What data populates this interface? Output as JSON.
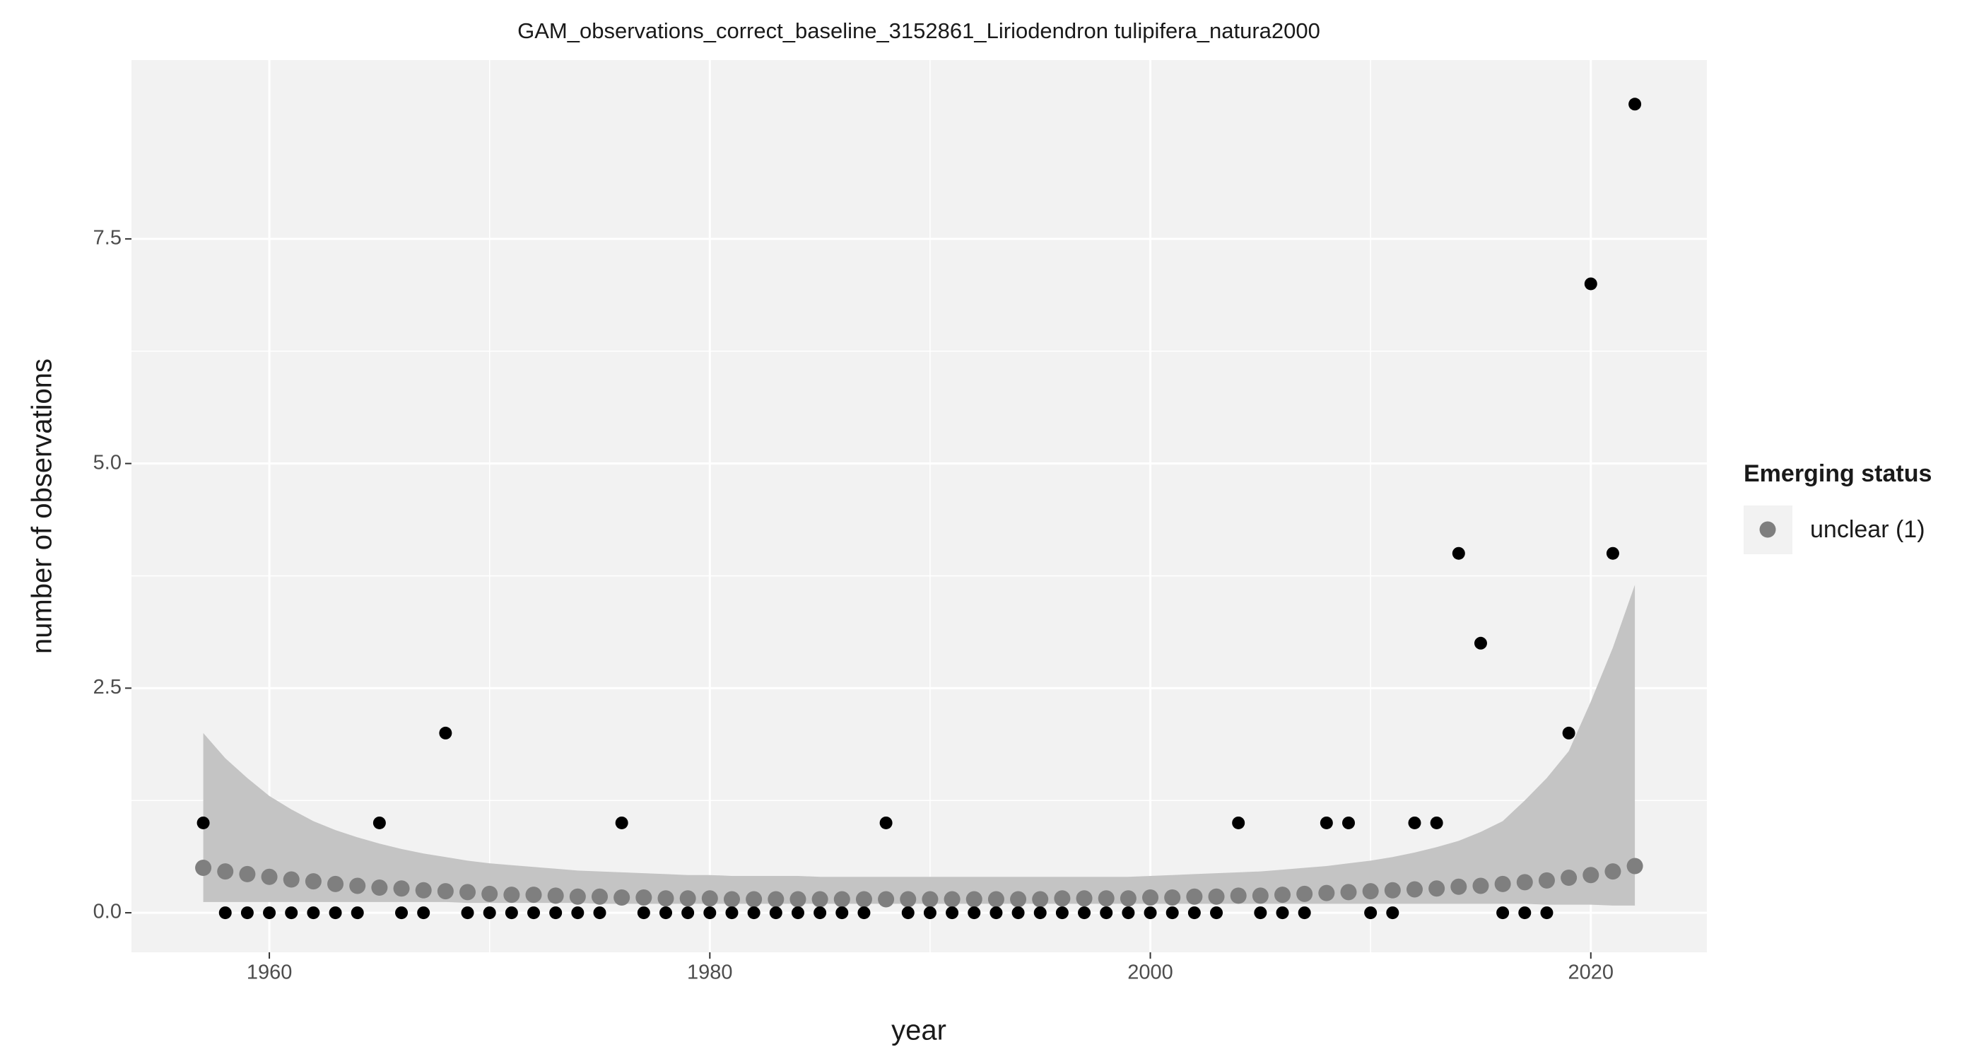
{
  "chart_data": {
    "type": "scatter",
    "title": "GAM_observations_correct_baseline_3152861_Liriodendron tulipifera_natura2000",
    "x_label": "year",
    "y_label": "number of observations",
    "legend_title": "Emerging status",
    "xlim": [
      1953.74,
      2025.27
    ],
    "ylim": [
      -0.44,
      9.49
    ],
    "xticks": [
      1960,
      1980,
      2000,
      2020
    ],
    "yticks": [
      {
        "value": 0,
        "label": "0.0"
      },
      {
        "value": 2.5,
        "label": "2.5"
      },
      {
        "value": 5,
        "label": "5.0"
      },
      {
        "value": 7.5,
        "label": "7.5"
      }
    ],
    "grid": true,
    "x": [
      1957,
      1958,
      1959,
      1960,
      1961,
      1962,
      1963,
      1964,
      1965,
      1966,
      1967,
      1968,
      1969,
      1970,
      1971,
      1972,
      1973,
      1974,
      1975,
      1976,
      1977,
      1978,
      1979,
      1980,
      1981,
      1982,
      1983,
      1984,
      1985,
      1986,
      1987,
      1988,
      1989,
      1990,
      1991,
      1992,
      1993,
      1994,
      1995,
      1996,
      1997,
      1998,
      1999,
      2000,
      2001,
      2002,
      2003,
      2004,
      2005,
      2006,
      2007,
      2008,
      2009,
      2010,
      2011,
      2012,
      2013,
      2014,
      2015,
      2016,
      2017,
      2018,
      2019,
      2020,
      2021,
      2022
    ],
    "observations": {
      "color": "#000000",
      "values": [
        1,
        0,
        0,
        0,
        0,
        0,
        0,
        0,
        1,
        0,
        0,
        2,
        0,
        0,
        0,
        0,
        0,
        0,
        0,
        1,
        0,
        0,
        0,
        0,
        0,
        0,
        0,
        0,
        0,
        0,
        0,
        1,
        0,
        0,
        0,
        0,
        0,
        0,
        0,
        0,
        0,
        0,
        0,
        0,
        0,
        0,
        0,
        1,
        0,
        0,
        0,
        1,
        1,
        0,
        0,
        1,
        1,
        4,
        3,
        0,
        0,
        0,
        2,
        7,
        4,
        9
      ]
    },
    "ribbon": {
      "color": "#c4c4c4",
      "upper": [
        2.0,
        1.72,
        1.5,
        1.3,
        1.15,
        1.02,
        0.92,
        0.84,
        0.77,
        0.71,
        0.66,
        0.62,
        0.58,
        0.55,
        0.53,
        0.51,
        0.49,
        0.47,
        0.46,
        0.45,
        0.44,
        0.43,
        0.42,
        0.42,
        0.41,
        0.41,
        0.41,
        0.41,
        0.4,
        0.4,
        0.4,
        0.4,
        0.4,
        0.4,
        0.4,
        0.4,
        0.4,
        0.4,
        0.4,
        0.4,
        0.4,
        0.4,
        0.4,
        0.41,
        0.42,
        0.43,
        0.44,
        0.45,
        0.46,
        0.48,
        0.5,
        0.52,
        0.55,
        0.58,
        0.62,
        0.67,
        0.73,
        0.8,
        0.9,
        1.02,
        1.25,
        1.5,
        1.8,
        2.35,
        2.95,
        3.65
      ],
      "lower": [
        0.12,
        0.12,
        0.12,
        0.12,
        0.12,
        0.12,
        0.12,
        0.12,
        0.12,
        0.12,
        0.12,
        0.12,
        0.11,
        0.11,
        0.11,
        0.11,
        0.11,
        0.11,
        0.1,
        0.1,
        0.1,
        0.1,
        0.1,
        0.1,
        0.1,
        0.1,
        0.1,
        0.1,
        0.1,
        0.1,
        0.1,
        0.1,
        0.1,
        0.1,
        0.1,
        0.1,
        0.1,
        0.1,
        0.1,
        0.1,
        0.1,
        0.1,
        0.1,
        0.1,
        0.1,
        0.1,
        0.1,
        0.1,
        0.1,
        0.1,
        0.1,
        0.1,
        0.1,
        0.1,
        0.1,
        0.1,
        0.1,
        0.1,
        0.1,
        0.1,
        0.1,
        0.09,
        0.09,
        0.09,
        0.08,
        0.08
      ]
    },
    "series": [
      {
        "name": "unclear (1)",
        "color": "#7f7f7f",
        "values": [
          0.5,
          0.46,
          0.43,
          0.4,
          0.37,
          0.35,
          0.32,
          0.3,
          0.28,
          0.27,
          0.25,
          0.24,
          0.23,
          0.21,
          0.2,
          0.2,
          0.19,
          0.18,
          0.18,
          0.17,
          0.17,
          0.16,
          0.16,
          0.16,
          0.15,
          0.15,
          0.15,
          0.15,
          0.15,
          0.15,
          0.15,
          0.15,
          0.15,
          0.15,
          0.15,
          0.15,
          0.15,
          0.15,
          0.15,
          0.16,
          0.16,
          0.16,
          0.16,
          0.17,
          0.17,
          0.18,
          0.18,
          0.19,
          0.19,
          0.2,
          0.21,
          0.22,
          0.23,
          0.24,
          0.25,
          0.26,
          0.27,
          0.29,
          0.3,
          0.32,
          0.34,
          0.36,
          0.39,
          0.42,
          0.46,
          0.52
        ]
      }
    ]
  }
}
